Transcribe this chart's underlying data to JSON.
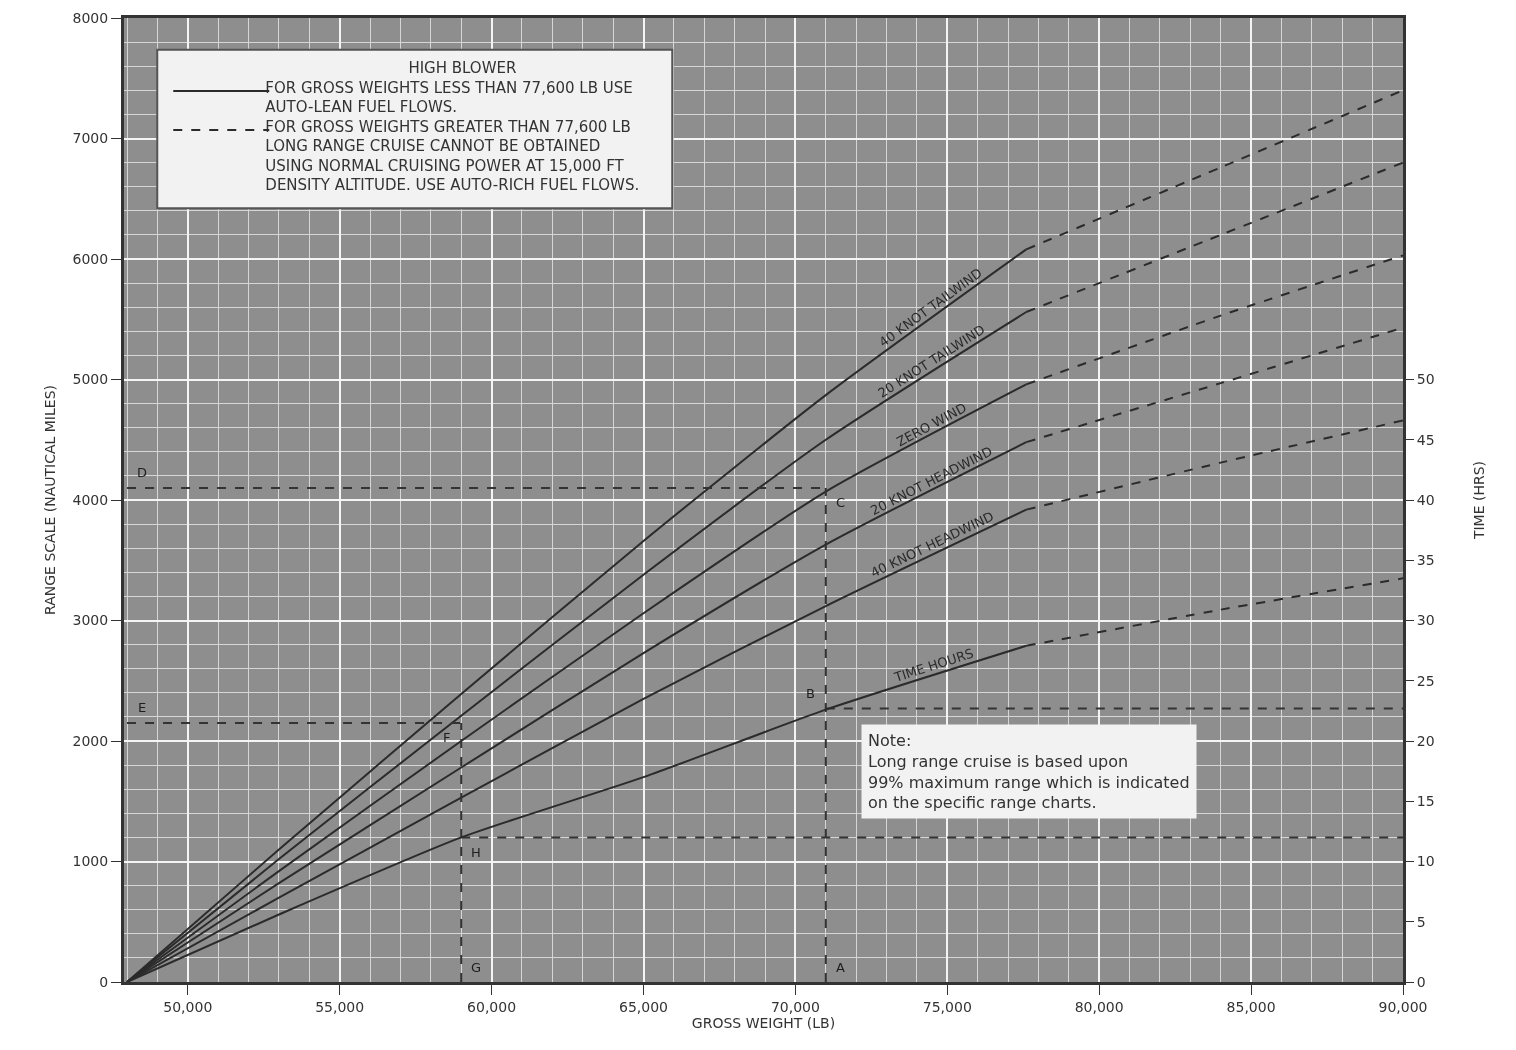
{
  "chart_data": {
    "type": "line",
    "xlabel": "GROSS WEIGHT (LB)",
    "ylabel": "RANGE SCALE (NAUTICAL MILES)",
    "y2label": "TIME (HRS)",
    "xlim": [
      47900,
      90000
    ],
    "xticks": [
      {
        "value": 50000,
        "label": "50,000"
      },
      {
        "value": 55000,
        "label": "55,000"
      },
      {
        "value": 60000,
        "label": "60,000"
      },
      {
        "value": 65000,
        "label": "65,000"
      },
      {
        "value": 70000,
        "label": "70,000"
      },
      {
        "value": 75000,
        "label": "75,000"
      },
      {
        "value": 80000,
        "label": "80,000"
      },
      {
        "value": 85000,
        "label": "85,000"
      },
      {
        "value": 90000,
        "label": "90,000"
      }
    ],
    "ylim": [
      0,
      8000
    ],
    "yticks": [
      0,
      1000,
      2000,
      3000,
      4000,
      5000,
      6000,
      7000,
      8000
    ],
    "y2lim": [
      0,
      80
    ],
    "y2ticks": [
      0,
      5,
      10,
      15,
      20,
      25,
      30,
      35,
      40,
      45,
      50
    ],
    "grid": true,
    "marker": "none",
    "series": [
      {
        "name": "40 KNOT TAILWIND",
        "color": "#2b2b2b",
        "line_style": "solid",
        "x": [
          48000,
          53000,
          59000,
          65000,
          71000,
          77600
        ],
        "values": [
          0,
          1100,
          2390,
          3660,
          4870,
          6080
        ]
      },
      {
        "color": "#2b2b2b",
        "line_style": "dashed",
        "x": [
          77600,
          84000,
          90000
        ],
        "values": [
          6080,
          6760,
          7400
        ]
      },
      {
        "name": "20 KNOT TAILWIND",
        "color": "#2b2b2b",
        "line_style": "solid",
        "x": [
          48000,
          53000,
          59000,
          65000,
          71000,
          77600
        ],
        "values": [
          0,
          1020,
          2210,
          3380,
          4500,
          5560
        ]
      },
      {
        "color": "#2b2b2b",
        "line_style": "dashed",
        "x": [
          77600,
          84000,
          90000
        ],
        "values": [
          5560,
          6200,
          6800
        ]
      },
      {
        "name": "ZERO WIND",
        "color": "#2b2b2b",
        "line_style": "solid",
        "x": [
          48000,
          53000,
          59000,
          65000,
          71000,
          77600
        ],
        "values": [
          0,
          920,
          2000,
          3060,
          4070,
          4960
        ]
      },
      {
        "color": "#2b2b2b",
        "line_style": "dashed",
        "x": [
          77600,
          84000,
          90000
        ],
        "values": [
          4960,
          5530,
          6030
        ]
      },
      {
        "name": "20 KNOT HEADWIND",
        "color": "#2b2b2b",
        "line_style": "solid",
        "x": [
          48000,
          53000,
          59000,
          65000,
          71000,
          77600
        ],
        "values": [
          0,
          820,
          1780,
          2730,
          3630,
          4480
        ]
      },
      {
        "color": "#2b2b2b",
        "line_style": "dashed",
        "x": [
          77600,
          84000,
          90000
        ],
        "values": [
          4480,
          4970,
          5430
        ]
      },
      {
        "name": "40 KNOT HEADWIND",
        "color": "#2b2b2b",
        "line_style": "solid",
        "x": [
          48000,
          53000,
          59000,
          65000,
          71000,
          77600
        ],
        "values": [
          0,
          700,
          1530,
          2350,
          3120,
          3920
        ]
      },
      {
        "color": "#2b2b2b",
        "line_style": "dashed",
        "x": [
          77600,
          84000,
          90000
        ],
        "values": [
          3920,
          4310,
          4660
        ]
      },
      {
        "name": "TIME HOURS",
        "color": "#2b2b2b",
        "line_style": "solid",
        "axis": "y2",
        "x": [
          48000,
          53000,
          59000,
          65000,
          71000,
          77600
        ],
        "values": [
          0,
          5.6,
          12,
          17,
          22.6,
          27.9
        ]
      },
      {
        "color": "#2b2b2b",
        "line_style": "dashed",
        "axis": "y2",
        "x": [
          77600,
          84000,
          90000
        ],
        "values": [
          27.9,
          30.9,
          33.5
        ]
      },
      {
        "color": "#333333",
        "line_style": "dashed",
        "x": [
          48000,
          71000
        ],
        "values": [
          4100,
          4100
        ]
      },
      {
        "color": "#333333",
        "line_style": "dashed",
        "x": [
          71000,
          71000
        ],
        "values": [
          0,
          4100
        ]
      },
      {
        "color": "#333333",
        "line_style": "dashed",
        "x": [
          71000,
          90000
        ],
        "values": [
          2270,
          2270
        ]
      },
      {
        "color": "#333333",
        "line_style": "dashed",
        "x": [
          48000,
          59000
        ],
        "values": [
          2150,
          2150
        ]
      },
      {
        "color": "#333333",
        "line_style": "dashed",
        "x": [
          59000,
          59000
        ],
        "values": [
          0,
          2150
        ]
      },
      {
        "color": "#333333",
        "line_style": "dashed",
        "x": [
          59000,
          90000
        ],
        "values": [
          1200,
          1200
        ]
      }
    ],
    "annotations": [
      "HIGH BLOWER",
      "FOR GROSS WEIGHTS LESS THAN 77,600 LB USE\nAUTO-LEAN FUEL FLOWS.",
      "FOR GROSS WEIGHTS GREATER THAN 77,600 LB\nLONG RANGE CRUISE CANNOT BE OBTAINED\nUSING NORMAL CRUISING POWER AT 15,000 FT\nDENSITY ALTITUDE. USE AUTO-RICH FUEL FLOWS.",
      "Note:\nLong range cruise is based upon\n99% maximum range which is indicated\non the specific range charts.",
      {
        "text": "A",
        "x": 71000,
        "y": 0
      },
      {
        "text": "B",
        "x": 71000,
        "y": 2270
      },
      {
        "text": "C",
        "x": 71000,
        "y": 4100
      },
      {
        "text": "D",
        "x": 48000,
        "y": 4100
      },
      {
        "text": "E",
        "x": 48000,
        "y": 2150
      },
      {
        "text": "F",
        "x": 59000,
        "y": 2150
      },
      {
        "text": "G",
        "x": 59000,
        "y": 0
      },
      {
        "text": "H",
        "x": 59000,
        "y": 1200
      }
    ]
  }
}
